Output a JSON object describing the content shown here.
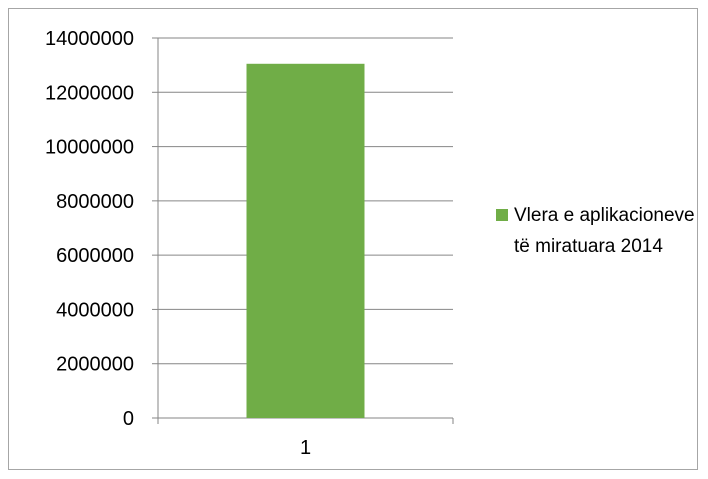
{
  "chart_data": {
    "type": "bar",
    "categories": [
      "1"
    ],
    "series": [
      {
        "name": "Vlera e aplikacioneve të miratuara 2014",
        "values": [
          13050000
        ],
        "color": "#70ad47"
      }
    ],
    "ylim": [
      0,
      14000000
    ],
    "yticks": [
      "0",
      "2000000",
      "4000000",
      "6000000",
      "8000000",
      "10000000",
      "12000000",
      "14000000"
    ],
    "grid": true,
    "legend_position": "right"
  }
}
